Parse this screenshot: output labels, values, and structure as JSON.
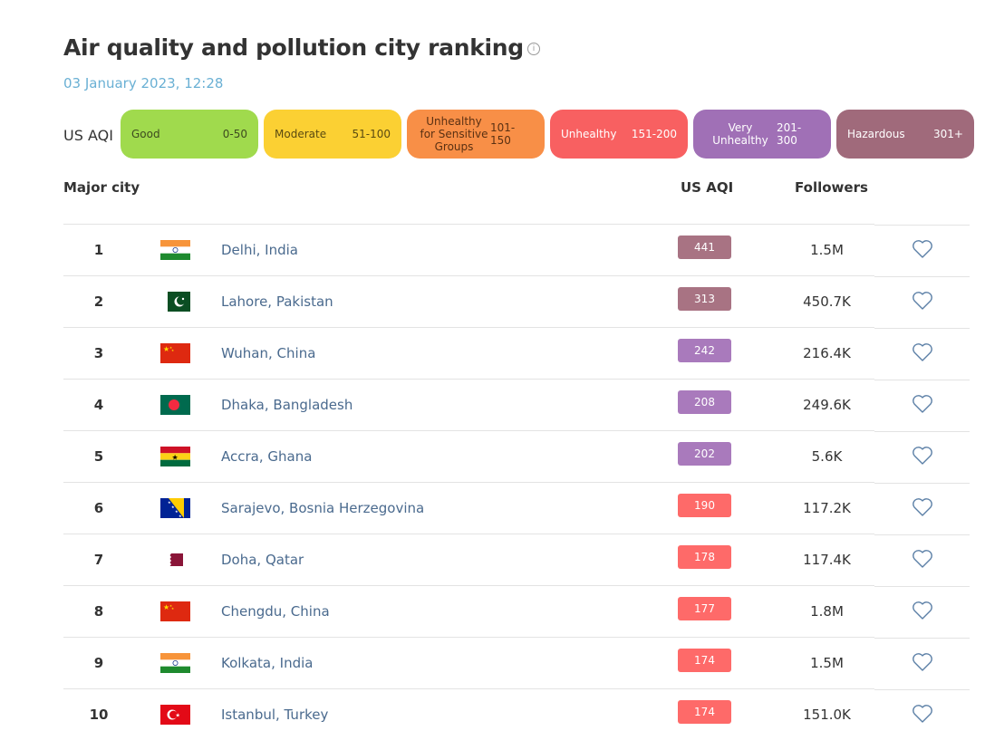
{
  "title": "Air quality and pollution city ranking",
  "date": "03 January 2023, 12:28",
  "legend_label": "US AQI",
  "legend": [
    {
      "name": "Good",
      "range": "0-50",
      "color": "#a0da4d",
      "text": "#3d4a1f"
    },
    {
      "name": "Moderate",
      "range": "51-100",
      "color": "#fbd033",
      "text": "#5a4a10"
    },
    {
      "name": "Unhealthy for Sensitive Groups",
      "range": "101-150",
      "color": "#f88f47",
      "text": "#5a3012"
    },
    {
      "name": "Unhealthy",
      "range": "151-200",
      "color": "#f86061",
      "text": "#ffffff"
    },
    {
      "name": "Very Unhealthy",
      "range": "201-300",
      "color": "#a070b6",
      "text": "#ffffff"
    },
    {
      "name": "Hazardous",
      "range": "301+",
      "color": "#a06a7b",
      "text": "#ffffff"
    }
  ],
  "headers": {
    "city": "Major city",
    "aqi": "US AQI",
    "followers": "Followers"
  },
  "rows": [
    {
      "rank": "1",
      "flag": "india",
      "city": "Delhi, India",
      "aqi": "441",
      "followers": "1.5M",
      "color": "#a87383"
    },
    {
      "rank": "2",
      "flag": "pakistan",
      "city": "Lahore, Pakistan",
      "aqi": "313",
      "followers": "450.7K",
      "color": "#a87383"
    },
    {
      "rank": "3",
      "flag": "china",
      "city": "Wuhan, China",
      "aqi": "242",
      "followers": "216.4K",
      "color": "#a97abc"
    },
    {
      "rank": "4",
      "flag": "bangladesh",
      "city": "Dhaka, Bangladesh",
      "aqi": "208",
      "followers": "249.6K",
      "color": "#a97abc"
    },
    {
      "rank": "5",
      "flag": "ghana",
      "city": "Accra, Ghana",
      "aqi": "202",
      "followers": "5.6K",
      "color": "#a97abc"
    },
    {
      "rank": "6",
      "flag": "bosnia",
      "city": "Sarajevo, Bosnia Herzegovina",
      "aqi": "190",
      "followers": "117.2K",
      "color": "#fe6a69"
    },
    {
      "rank": "7",
      "flag": "qatar",
      "city": "Doha, Qatar",
      "aqi": "178",
      "followers": "117.4K",
      "color": "#fe6a69"
    },
    {
      "rank": "8",
      "flag": "china",
      "city": "Chengdu, China",
      "aqi": "177",
      "followers": "1.8M",
      "color": "#fe6a69"
    },
    {
      "rank": "9",
      "flag": "india",
      "city": "Kolkata, India",
      "aqi": "174",
      "followers": "1.5M",
      "color": "#fe6a69"
    },
    {
      "rank": "10",
      "flag": "turkey",
      "city": "Istanbul, Turkey",
      "aqi": "174",
      "followers": "151.0K",
      "color": "#fe6a69"
    }
  ],
  "icons": {
    "info": "info-icon",
    "favorite": "heart-outline-icon"
  }
}
